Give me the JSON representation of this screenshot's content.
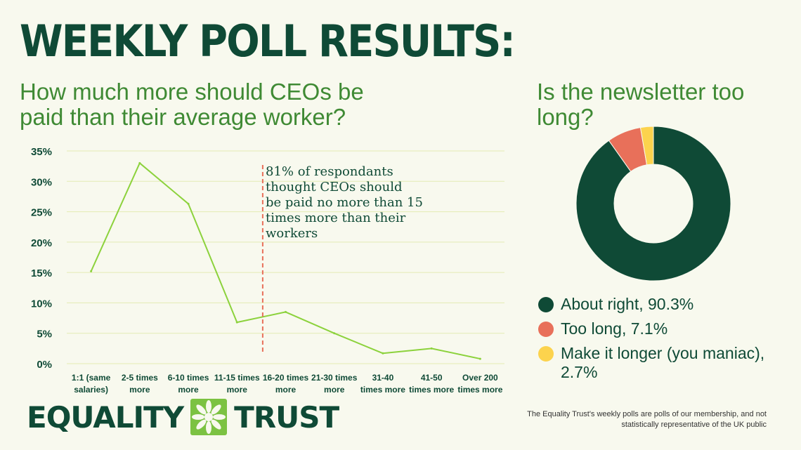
{
  "title": "WEEKLY POLL RESULTS:",
  "question_1": "How much more should CEOs be paid than their average worker?",
  "question_2": "Is the newsletter too long?",
  "annotation_lines": [
    "81% of respondants",
    "thought CEOs should",
    "be paid no more than 15",
    "times more than their",
    "workers"
  ],
  "brand": {
    "word1": "EQUALITY",
    "word2": "TRUST"
  },
  "footnote": "The Equality Trust's weekly polls are polls of our membership, and not statistically representative of the UK public",
  "colors": {
    "dark_green": "#0f4a36",
    "mid_green": "#3f8a34",
    "line_green": "#8cd23c",
    "orange": "#e8705a",
    "yellow": "#fcd34d",
    "background": "#f8f9ee"
  },
  "chart_data": [
    {
      "type": "line",
      "categories": [
        [
          "1:1 (same",
          "salaries)"
        ],
        [
          "2-5 times",
          "more"
        ],
        [
          "6-10 times",
          "more"
        ],
        [
          "11-15 times",
          "more"
        ],
        [
          "16-20 times",
          "more"
        ],
        [
          "21-30 times",
          "more"
        ],
        [
          "31-40",
          "times more"
        ],
        [
          "41-50",
          "times more"
        ],
        [
          "Over 200",
          "times more"
        ]
      ],
      "values": [
        15.2,
        33.0,
        26.3,
        6.8,
        8.5,
        5.0,
        1.7,
        2.5,
        0.8
      ],
      "yticks": [
        "0%",
        "5%",
        "10%",
        "15%",
        "20%",
        "25%",
        "30%",
        "35%"
      ],
      "ylim": [
        0,
        35
      ],
      "grid": true,
      "annotation_category_index": 3.5
    },
    {
      "type": "pie",
      "labels": [
        "About right, 90.3%",
        "Too long, 7.1%",
        "Make it longer (you maniac), 2.7%"
      ],
      "values": [
        90.3,
        7.1,
        2.7
      ],
      "colors": [
        "#0f4a36",
        "#e8705a",
        "#fcd34d"
      ],
      "legend_placement": "bottom"
    }
  ]
}
